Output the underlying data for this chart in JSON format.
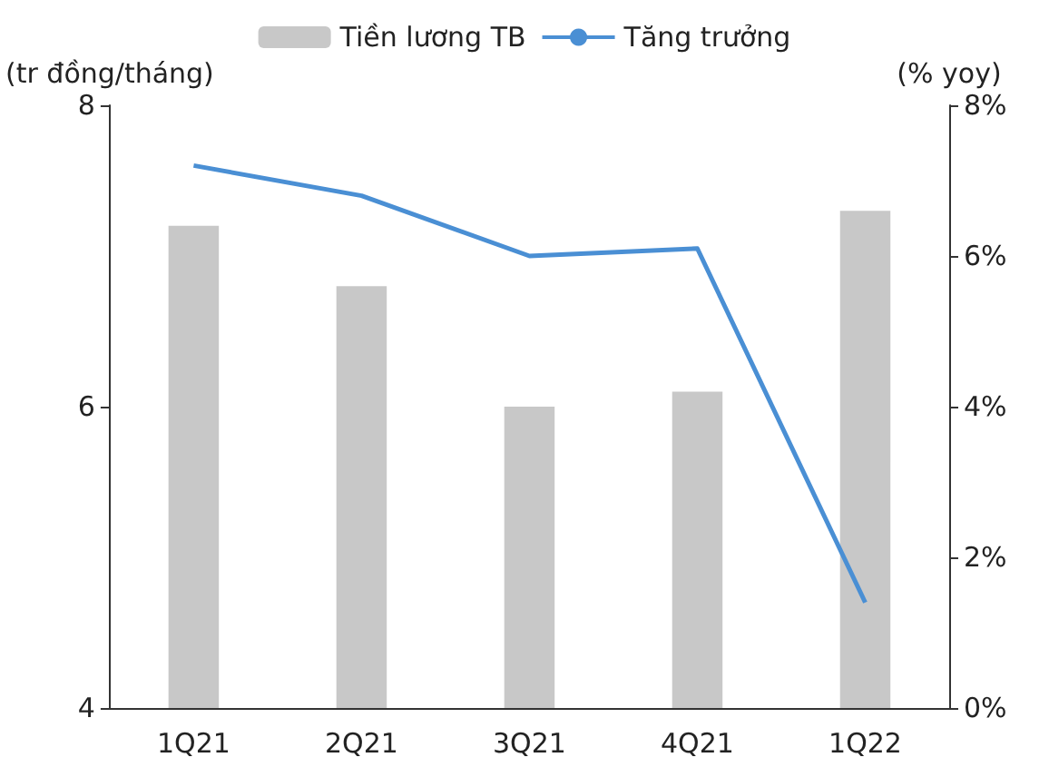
{
  "chart_data": {
    "type": "bar",
    "ylabel": "(tr đồng/tháng)",
    "y2label": "(% yoy)",
    "categories": [
      "1Q21",
      "2Q21",
      "3Q21",
      "4Q21",
      "1Q22"
    ],
    "series": [
      {
        "name": "Tiền lương TB",
        "color": "#c8c8c8",
        "values": [
          7.2,
          6.8,
          6.0,
          6.1,
          7.3
        ]
      },
      {
        "name": "Tăng trưởng",
        "type": "line",
        "color": "#4a8fd4",
        "axis": "y2",
        "values": [
          7.2,
          6.8,
          6.0,
          6.1,
          1.4
        ]
      }
    ],
    "ylim": [
      4,
      8
    ],
    "yticks": [
      4,
      6,
      8
    ],
    "y2lim": [
      0,
      8
    ],
    "y2ticks": [
      {
        "value": 0,
        "label": "0%"
      },
      {
        "value": 2,
        "label": "2%"
      },
      {
        "value": 4,
        "label": "4%"
      },
      {
        "value": 6,
        "label": "6%"
      },
      {
        "value": 8,
        "label": "8%"
      }
    ],
    "grid": false,
    "legend": "top",
    "marker": "none",
    "line_style": "solid"
  }
}
